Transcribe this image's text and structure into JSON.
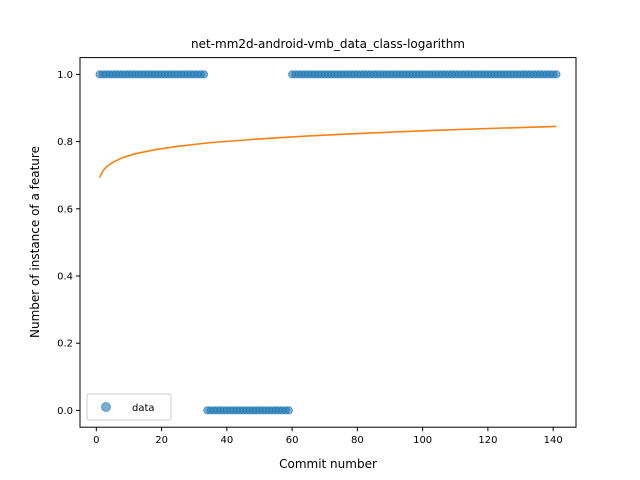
{
  "chart_data": {
    "type": "scatter",
    "title": "net-mm2d-android-vmb_data_class-logarithm",
    "xlabel": "Commit number",
    "ylabel": "Number of instance of a feature",
    "xlim": [
      -5,
      147
    ],
    "ylim": [
      -0.05,
      1.05
    ],
    "xticks": [
      0,
      20,
      40,
      60,
      80,
      100,
      120,
      140
    ],
    "yticks": [
      0.0,
      0.2,
      0.4,
      0.6,
      0.8,
      1.0
    ],
    "xtick_labels": [
      "0",
      "20",
      "40",
      "60",
      "80",
      "100",
      "120",
      "140"
    ],
    "ytick_labels": [
      "0.0",
      "0.2",
      "0.4",
      "0.6",
      "0.8",
      "1.0"
    ],
    "grid": false,
    "legend": {
      "position": "lower-left",
      "entries": [
        "data"
      ]
    },
    "series": [
      {
        "name": "data",
        "kind": "scatter",
        "color": "#1f77b4",
        "segments": [
          {
            "x_start": 1,
            "x_end": 33,
            "y": 1.0
          },
          {
            "x_start": 34,
            "x_end": 59,
            "y": 0.0
          },
          {
            "x_start": 60,
            "x_end": 141,
            "y": 1.0
          }
        ]
      },
      {
        "kind": "line",
        "color": "#ff7f0e",
        "x": [
          1,
          2,
          3,
          5,
          8,
          12,
          18,
          25,
          35,
          50,
          65,
          80,
          100,
          120,
          141
        ],
        "y": [
          0.693,
          0.712,
          0.724,
          0.738,
          0.752,
          0.764,
          0.776,
          0.786,
          0.797,
          0.808,
          0.817,
          0.824,
          0.832,
          0.839,
          0.845
        ]
      }
    ]
  }
}
